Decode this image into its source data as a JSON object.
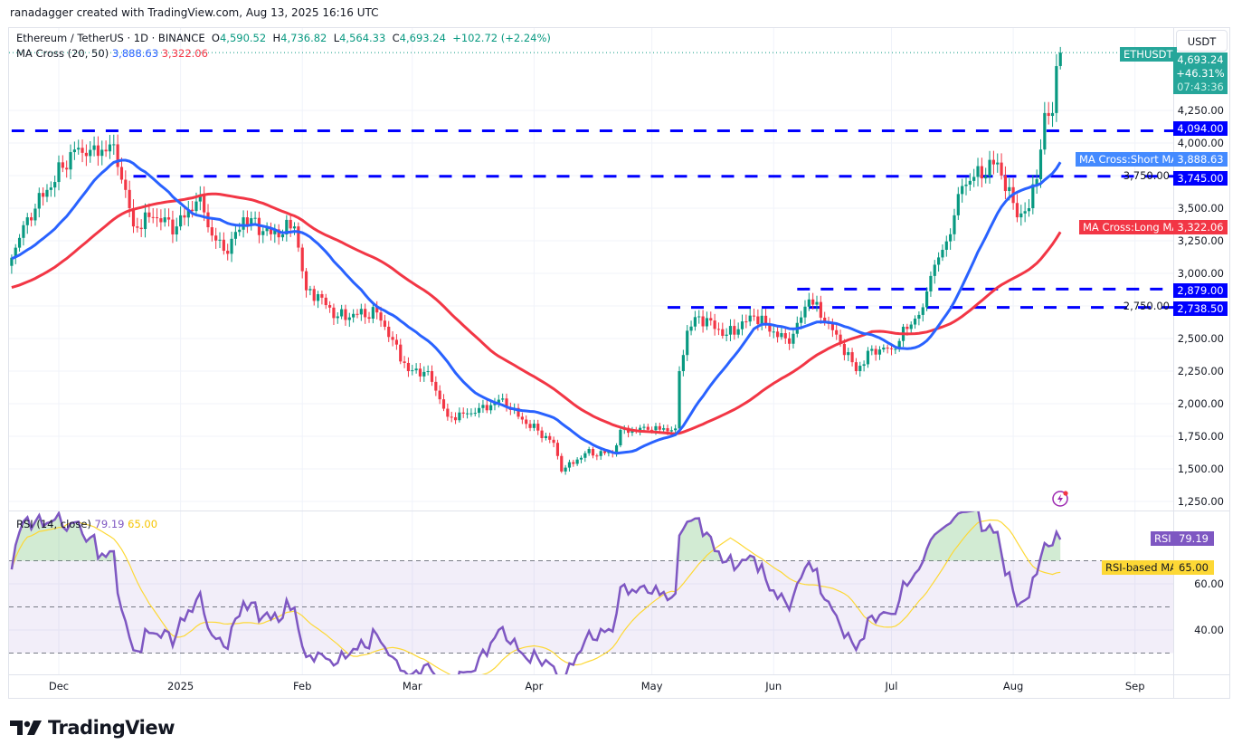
{
  "credit": "ranadagger created with TradingView.com, Aug 13, 2025 16:16 UTC",
  "legend": {
    "symbol": "Ethereum / TetherUS · 1D · BINANCE",
    "o_label": "O",
    "o": "4,590.52",
    "h_label": "H",
    "h": "4,736.82",
    "l_label": "L",
    "l": "4,564.33",
    "c_label": "C",
    "c": "4,693.24",
    "change": "+102.72 (+2.24%)",
    "ma_label": "MA Cross (20, 50)",
    "ma_short": "3,888.63",
    "ma_long": "3,322.06",
    "rsi_label": "RSI (14, close)",
    "rsi_value": "79.19",
    "rsi_ma_value": "65.00"
  },
  "price_axis": {
    "currency": "USDT",
    "ticks": [
      "4,250.00",
      "4,000.00",
      "3,750.00",
      "3,500.00",
      "3,250.00",
      "3,000.00",
      "2,750.00",
      "2,500.00",
      "2,250.00",
      "2,000.00",
      "1,750.00",
      "1,500.00",
      "1,250.00"
    ],
    "current": {
      "symbol": "ETHUSDT",
      "price": "4,693.24",
      "change_pct": "+46.31%",
      "countdown": "07:43:36"
    },
    "ma_short_tag": "MA Cross:Short MA",
    "ma_short_value": "3,888.63",
    "ma_long_tag": "MA Cross:Long MA",
    "ma_long_value": "3,322.06"
  },
  "levels": [
    {
      "value": 4094.0,
      "label": "4,094.00",
      "from": "2024-11-19"
    },
    {
      "value": 3745.0,
      "label": "3,745.00",
      "from": "2024-12-20"
    },
    {
      "value": 2879.0,
      "label": "2,879.00",
      "from": "2025-06-07"
    },
    {
      "value": 2738.5,
      "label": "2,738.50",
      "from": "2025-05-05"
    }
  ],
  "rsi_axis": {
    "ticks": [
      "60.00",
      "40.00"
    ],
    "rsi_tag": "RSI",
    "rsi_value": "79.19",
    "ma_tag": "RSI-based MA",
    "ma_value": "65.00"
  },
  "time_axis": [
    {
      "label": "Dec",
      "date": "2024-12-01"
    },
    {
      "label": "2025",
      "date": "2025-01-01"
    },
    {
      "label": "Feb",
      "date": "2025-02-01"
    },
    {
      "label": "Mar",
      "date": "2025-03-01"
    },
    {
      "label": "Apr",
      "date": "2025-04-01"
    },
    {
      "label": "May",
      "date": "2025-05-01"
    },
    {
      "label": "Jun",
      "date": "2025-06-01"
    },
    {
      "label": "Jul",
      "date": "2025-07-01"
    },
    {
      "label": "Aug",
      "date": "2025-08-01"
    },
    {
      "label": "Sep",
      "date": "2025-09-01"
    }
  ],
  "brand": "TradingView",
  "colors": {
    "up": "#089981",
    "down": "#f23645",
    "ma_short": "#2962ff",
    "ma_long": "#f23645",
    "level": "#0000ff",
    "rsi": "#7e57c2",
    "rsi_ma": "#fdd835"
  },
  "chart_data": {
    "type": "candlestick",
    "title": "Ethereum / TetherUS · 1D · BINANCE",
    "ylabel": "USDT",
    "ylim": [
      1250,
      4750
    ],
    "last_candle": {
      "date": "2025-08-13",
      "open": 4590.52,
      "high": 4736.82,
      "low": 4564.33,
      "close": 4693.24
    },
    "close_keypoints": [
      [
        "2024-11-19",
        3120
      ],
      [
        "2024-11-23",
        3430
      ],
      [
        "2024-11-28",
        3640
      ],
      [
        "2024-12-05",
        3950
      ],
      [
        "2024-12-08",
        3900
      ],
      [
        "2024-12-15",
        3990
      ],
      [
        "2024-12-18",
        3640
      ],
      [
        "2024-12-20",
        3360
      ],
      [
        "2024-12-25",
        3430
      ],
      [
        "2024-12-31",
        3360
      ],
      [
        "2025-01-06",
        3600
      ],
      [
        "2025-01-09",
        3290
      ],
      [
        "2025-01-13",
        3150
      ],
      [
        "2025-01-17",
        3430
      ],
      [
        "2025-01-24",
        3300
      ],
      [
        "2025-01-30",
        3360
      ],
      [
        "2025-02-02",
        2870
      ],
      [
        "2025-02-03",
        2880
      ],
      [
        "2025-02-10",
        2670
      ],
      [
        "2025-02-20",
        2700
      ],
      [
        "2025-02-24",
        2490
      ],
      [
        "2025-02-28",
        2250
      ],
      [
        "2025-03-05",
        2250
      ],
      [
        "2025-03-10",
        1900
      ],
      [
        "2025-03-17",
        1930
      ],
      [
        "2025-03-24",
        2040
      ],
      [
        "2025-03-28",
        1900
      ],
      [
        "2025-04-06",
        1700
      ],
      [
        "2025-04-08",
        1480
      ],
      [
        "2025-04-14",
        1620
      ],
      [
        "2025-04-21",
        1620
      ],
      [
        "2025-04-23",
        1800
      ],
      [
        "2025-04-30",
        1800
      ],
      [
        "2025-05-07",
        1810
      ],
      [
        "2025-05-08",
        2250
      ],
      [
        "2025-05-10",
        2560
      ],
      [
        "2025-05-13",
        2670
      ],
      [
        "2025-05-20",
        2530
      ],
      [
        "2025-05-27",
        2670
      ],
      [
        "2025-06-05",
        2460
      ],
      [
        "2025-06-10",
        2800
      ],
      [
        "2025-06-17",
        2530
      ],
      [
        "2025-06-22",
        2250
      ],
      [
        "2025-06-26",
        2420
      ],
      [
        "2025-07-01",
        2420
      ],
      [
        "2025-07-09",
        2740
      ],
      [
        "2025-07-11",
        2980
      ],
      [
        "2025-07-16",
        3300
      ],
      [
        "2025-07-19",
        3670
      ],
      [
        "2025-07-22",
        3740
      ],
      [
        "2025-07-28",
        3850
      ],
      [
        "2025-08-02",
        3430
      ],
      [
        "2025-08-05",
        3500
      ],
      [
        "2025-08-08",
        3950
      ],
      [
        "2025-08-09",
        4230
      ],
      [
        "2025-08-11",
        4230
      ],
      [
        "2025-08-12",
        4590
      ],
      [
        "2025-08-13",
        4693.24
      ]
    ],
    "indicators": {
      "ma_short": {
        "period": 20,
        "last": 3888.63
      },
      "ma_long": {
        "period": 50,
        "last": 3322.06
      },
      "rsi": {
        "period": 14,
        "last": 79.19,
        "ma_last": 65.0,
        "bands": [
          30,
          50,
          70
        ]
      }
    }
  }
}
